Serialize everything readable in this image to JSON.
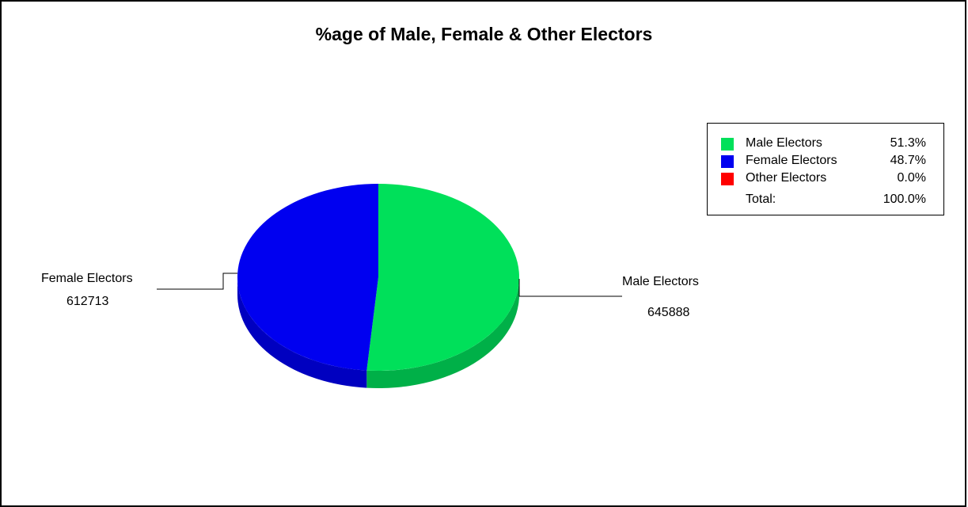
{
  "chart_data": {
    "type": "pie",
    "title": "%age of Male, Female & Other Electors",
    "slices": [
      {
        "label": "Male Electors",
        "value": 645888,
        "percent": "51.3%",
        "color": "#00e05a",
        "side_color": "#00b048"
      },
      {
        "label": "Female Electors",
        "value": 612713,
        "percent": "48.7%",
        "color": "#0000f0",
        "side_color": "#0000c0"
      },
      {
        "label": "Other Electors",
        "value": 0,
        "percent": "0.0%",
        "color": "#ff0000",
        "side_color": "#c00000"
      }
    ],
    "legend": {
      "position": "top-right",
      "total_label": "Total:",
      "total_percent": "100.0%"
    },
    "style": "3d"
  }
}
